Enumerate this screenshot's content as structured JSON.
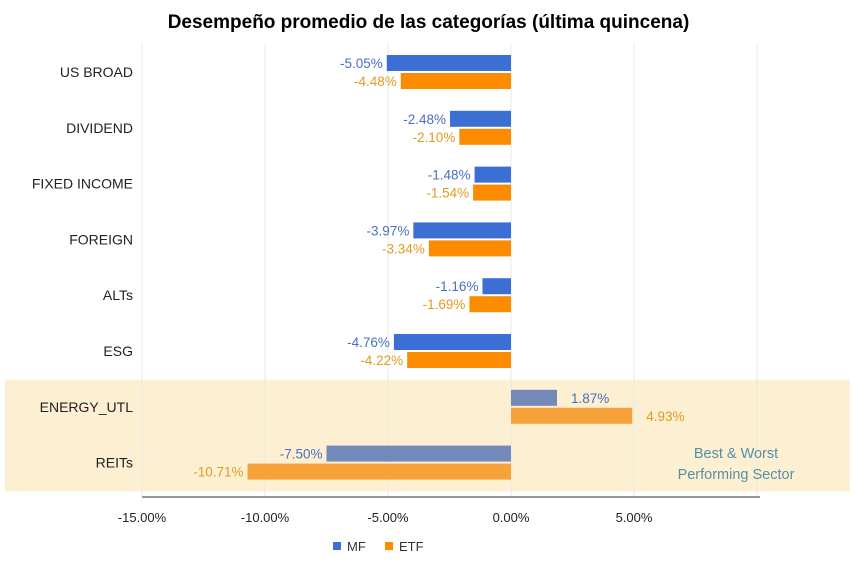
{
  "chart_data": {
    "type": "bar",
    "orientation": "horizontal",
    "title": "Desempeño promedio de las categorías (última quincena)",
    "categories": [
      "US BROAD",
      "DIVIDEND",
      "FIXED INCOME",
      "FOREIGN",
      "ALTs",
      "ESG",
      "ENERGY_UTL",
      "REITs"
    ],
    "series": [
      {
        "name": "MF",
        "color": "#3b6fd4",
        "highlight_color": "#7289b9",
        "values": [
          -5.05,
          -2.48,
          -1.48,
          -3.97,
          -1.16,
          -4.76,
          1.87,
          -7.5
        ],
        "labels": [
          "-5.05%",
          "-2.48%",
          "-1.48%",
          "-3.97%",
          "-1.16%",
          "-4.76%",
          "1.87%",
          "-7.50%"
        ]
      },
      {
        "name": "ETF",
        "color": "#fb8c00",
        "highlight_color": "#f7a23b",
        "values": [
          -4.48,
          -2.1,
          -1.54,
          -3.34,
          -1.69,
          -4.22,
          4.93,
          -10.71
        ],
        "labels": [
          "-4.48%",
          "-2.10%",
          "-1.54%",
          "-3.34%",
          "-1.69%",
          "-4.22%",
          "4.93%",
          "-10.71%"
        ]
      }
    ],
    "xlim": [
      -15,
      10
    ],
    "x_ticks": [
      -15,
      -10,
      -5,
      0,
      5
    ],
    "x_tick_labels": [
      "-15.00%",
      "-10.00%",
      "-5.00%",
      "0.00%",
      "5.00%"
    ],
    "gridlines": true,
    "legend_position": "bottom-center",
    "highlighted_categories": [
      "ENERGY_UTL",
      "REITs"
    ],
    "highlight_color": "#fdefd1",
    "annotation": [
      "Best & Worst",
      "Performing Sector"
    ]
  }
}
